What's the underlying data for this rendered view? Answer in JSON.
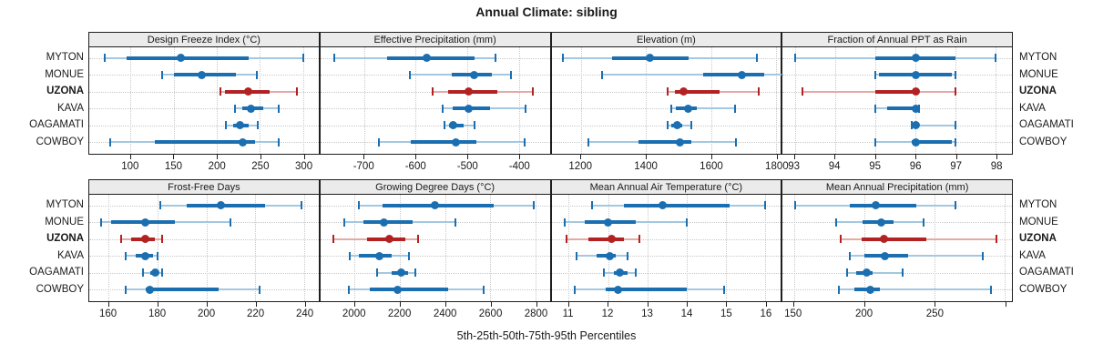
{
  "colors": {
    "series": "#1b6fb0",
    "series_light": "#a4c8e1",
    "highlight": "#b22222",
    "highlight_light": "#e3aaa6",
    "strip_bg": "#ebebeb",
    "panel_border": "#1f1f1f",
    "grid": "#c8c8c8",
    "text": "#1a1a1a"
  },
  "chart_data": {
    "type": "dotplot",
    "title": "Annual Climate: sibling",
    "caption": "5th-25th-50th-75th-95th Percentiles",
    "percentile_labels": [
      "5th",
      "25th",
      "50th",
      "75th",
      "95th"
    ],
    "sites": [
      "MYTON",
      "MONUE",
      "UZONA",
      "KAVA",
      "OAGAMATI",
      "COWBOY"
    ],
    "highlight_site": "UZONA",
    "layout": {
      "rows": 2,
      "cols": 4,
      "grid": "dotted",
      "site_labels": "both-sides",
      "legend": "none"
    },
    "panels": [
      {
        "title": "Design Freeze Index (°C)",
        "xlim": [
          52,
          318
        ],
        "ticks": [
          {
            "v": 100,
            "label": "100"
          },
          {
            "v": 150,
            "label": "150"
          },
          {
            "v": 200,
            "label": "200"
          },
          {
            "v": 250,
            "label": "250"
          },
          {
            "v": 300,
            "label": "300"
          }
        ],
        "values": {
          "MYTON": [
            70,
            95,
            158,
            237,
            300
          ],
          "MONUE": [
            136,
            150,
            182,
            222,
            246
          ],
          "UZONA": [
            204,
            209,
            236,
            261,
            293
          ],
          "KAVA": [
            221,
            230,
            240,
            254,
            272
          ],
          "OAGAMATI": [
            211,
            219,
            227,
            237,
            247
          ],
          "COWBOY": [
            76,
            128,
            230,
            244,
            272
          ]
        }
      },
      {
        "title": "Effective Precipitation (mm)",
        "xlim": [
          -785,
          -340
        ],
        "ticks": [
          {
            "v": -700,
            "label": "-700"
          },
          {
            "v": -600,
            "label": "-600"
          },
          {
            "v": -500,
            "label": "-500"
          },
          {
            "v": -400,
            "label": "-400"
          }
        ],
        "values": {
          "MYTON": [
            -758,
            -655,
            -578,
            -486,
            -445
          ],
          "MONUE": [
            -612,
            -530,
            -487,
            -452,
            -416
          ],
          "UZONA": [
            -568,
            -537,
            -497,
            -442,
            -372
          ],
          "KAVA": [
            -547,
            -528,
            -498,
            -456,
            -386
          ],
          "OAGAMATI": [
            -544,
            -536,
            -527,
            -507,
            -486
          ],
          "COWBOY": [
            -672,
            -610,
            -522,
            -482,
            -388
          ]
        }
      },
      {
        "title": "Elevation (m)",
        "xlim": [
          1109,
          1815
        ],
        "ticks": [
          {
            "v": 1200,
            "label": "1200"
          },
          {
            "v": 1400,
            "label": "1400"
          },
          {
            "v": 1600,
            "label": "1600"
          },
          {
            "v": 1800,
            "label": "1800"
          }
        ],
        "values": {
          "MYTON": [
            1145,
            1295,
            1412,
            1532,
            1740
          ],
          "MONUE": [
            1265,
            1575,
            1694,
            1764,
            1820
          ],
          "UZONA": [
            1467,
            1489,
            1516,
            1626,
            1748
          ],
          "KAVA": [
            1477,
            1492,
            1530,
            1556,
            1674
          ],
          "OAGAMATI": [
            1466,
            1478,
            1496,
            1512,
            1540
          ],
          "COWBOY": [
            1223,
            1377,
            1505,
            1540,
            1676
          ]
        }
      },
      {
        "title": "Fraction of Annual PPT as Rain",
        "xlim": [
          92.7,
          98.4
        ],
        "ticks": [
          {
            "v": 93,
            "label": "93"
          },
          {
            "v": 94,
            "label": "94"
          },
          {
            "v": 95,
            "label": "95"
          },
          {
            "v": 96,
            "label": "96"
          },
          {
            "v": 97,
            "label": "97"
          },
          {
            "v": 98,
            "label": "98"
          }
        ],
        "values": {
          "MYTON": [
            93,
            95,
            96,
            97,
            98
          ],
          "MONUE": [
            95,
            95.1,
            96,
            96.9,
            97
          ],
          "UZONA": [
            93.2,
            95,
            96,
            96.1,
            97
          ],
          "KAVA": [
            95,
            95.3,
            96,
            96,
            96.1
          ],
          "OAGAMATI": [
            95.9,
            96,
            96,
            96.1,
            97
          ],
          "COWBOY": [
            95,
            95.9,
            96,
            96.9,
            97
          ]
        }
      },
      {
        "title": "Frost-Free Days",
        "xlim": [
          152,
          246
        ],
        "ticks": [
          {
            "v": 160,
            "label": "160"
          },
          {
            "v": 180,
            "label": "180"
          },
          {
            "v": 200,
            "label": "200"
          },
          {
            "v": 220,
            "label": "220"
          },
          {
            "v": 240,
            "label": "240"
          }
        ],
        "values": {
          "MYTON": [
            181,
            192,
            206,
            224,
            239
          ],
          "MONUE": [
            157,
            161,
            175,
            187,
            210
          ],
          "UZONA": [
            165,
            169,
            175,
            179,
            182
          ],
          "KAVA": [
            167,
            171,
            175,
            178,
            180
          ],
          "OAGAMATI": [
            174,
            177,
            179,
            180,
            182
          ],
          "COWBOY": [
            167,
            175,
            177,
            205,
            222
          ]
        }
      },
      {
        "title": "Growing Degree Days (°C)",
        "xlim": [
          1848,
          2864
        ],
        "ticks": [
          {
            "v": 2000,
            "label": "2000"
          },
          {
            "v": 2200,
            "label": "2200"
          },
          {
            "v": 2400,
            "label": "2400"
          },
          {
            "v": 2600,
            "label": "2600"
          },
          {
            "v": 2800,
            "label": "2800"
          }
        ],
        "values": {
          "MYTON": [
            2020,
            2125,
            2355,
            2615,
            2795
          ],
          "MONUE": [
            1955,
            2040,
            2130,
            2255,
            2445
          ],
          "UZONA": [
            1905,
            2055,
            2155,
            2225,
            2280
          ],
          "KAVA": [
            1977,
            2020,
            2110,
            2165,
            2240
          ],
          "OAGAMATI": [
            2100,
            2165,
            2205,
            2235,
            2270
          ],
          "COWBOY": [
            1975,
            2065,
            2190,
            2415,
            2570
          ]
        }
      },
      {
        "title": "Mean Annual Air Temperature (°C)",
        "xlim": [
          10.56,
          16.4
        ],
        "ticks": [
          {
            "v": 11,
            "label": "11"
          },
          {
            "v": 12,
            "label": "12"
          },
          {
            "v": 13,
            "label": "13"
          },
          {
            "v": 14,
            "label": "14"
          },
          {
            "v": 15,
            "label": "15"
          },
          {
            "v": 16,
            "label": "16"
          }
        ],
        "values": {
          "MYTON": [
            11.6,
            12.4,
            13.4,
            15.1,
            16.0
          ],
          "MONUE": [
            10.9,
            11.4,
            12.0,
            12.7,
            14.0
          ],
          "UZONA": [
            10.95,
            11.5,
            12.1,
            12.4,
            12.8
          ],
          "KAVA": [
            11.2,
            11.7,
            12.05,
            12.2,
            12.5
          ],
          "OAGAMATI": [
            11.9,
            12.15,
            12.3,
            12.5,
            12.7
          ],
          "COWBOY": [
            11.15,
            11.95,
            12.25,
            14.0,
            14.95
          ]
        }
      },
      {
        "title": "Mean Annual Precipitation (mm)",
        "xlim": [
          142,
          305
        ],
        "ticks": [
          {
            "v": 150,
            "label": "150"
          },
          {
            "v": 200,
            "label": "200"
          },
          {
            "v": 250,
            "label": "250"
          },
          {
            "v": 300,
            "label": ""
          }
        ],
        "values": {
          "MYTON": [
            151,
            190,
            208,
            237,
            265
          ],
          "MONUE": [
            180,
            199,
            212,
            221,
            242
          ],
          "UZONA": [
            183,
            198,
            214,
            244,
            294
          ],
          "KAVA": [
            190,
            200,
            215,
            231,
            284
          ],
          "OAGAMATI": [
            188,
            194,
            202,
            206,
            227
          ],
          "COWBOY": [
            182,
            193,
            204,
            211,
            290
          ]
        }
      }
    ]
  }
}
